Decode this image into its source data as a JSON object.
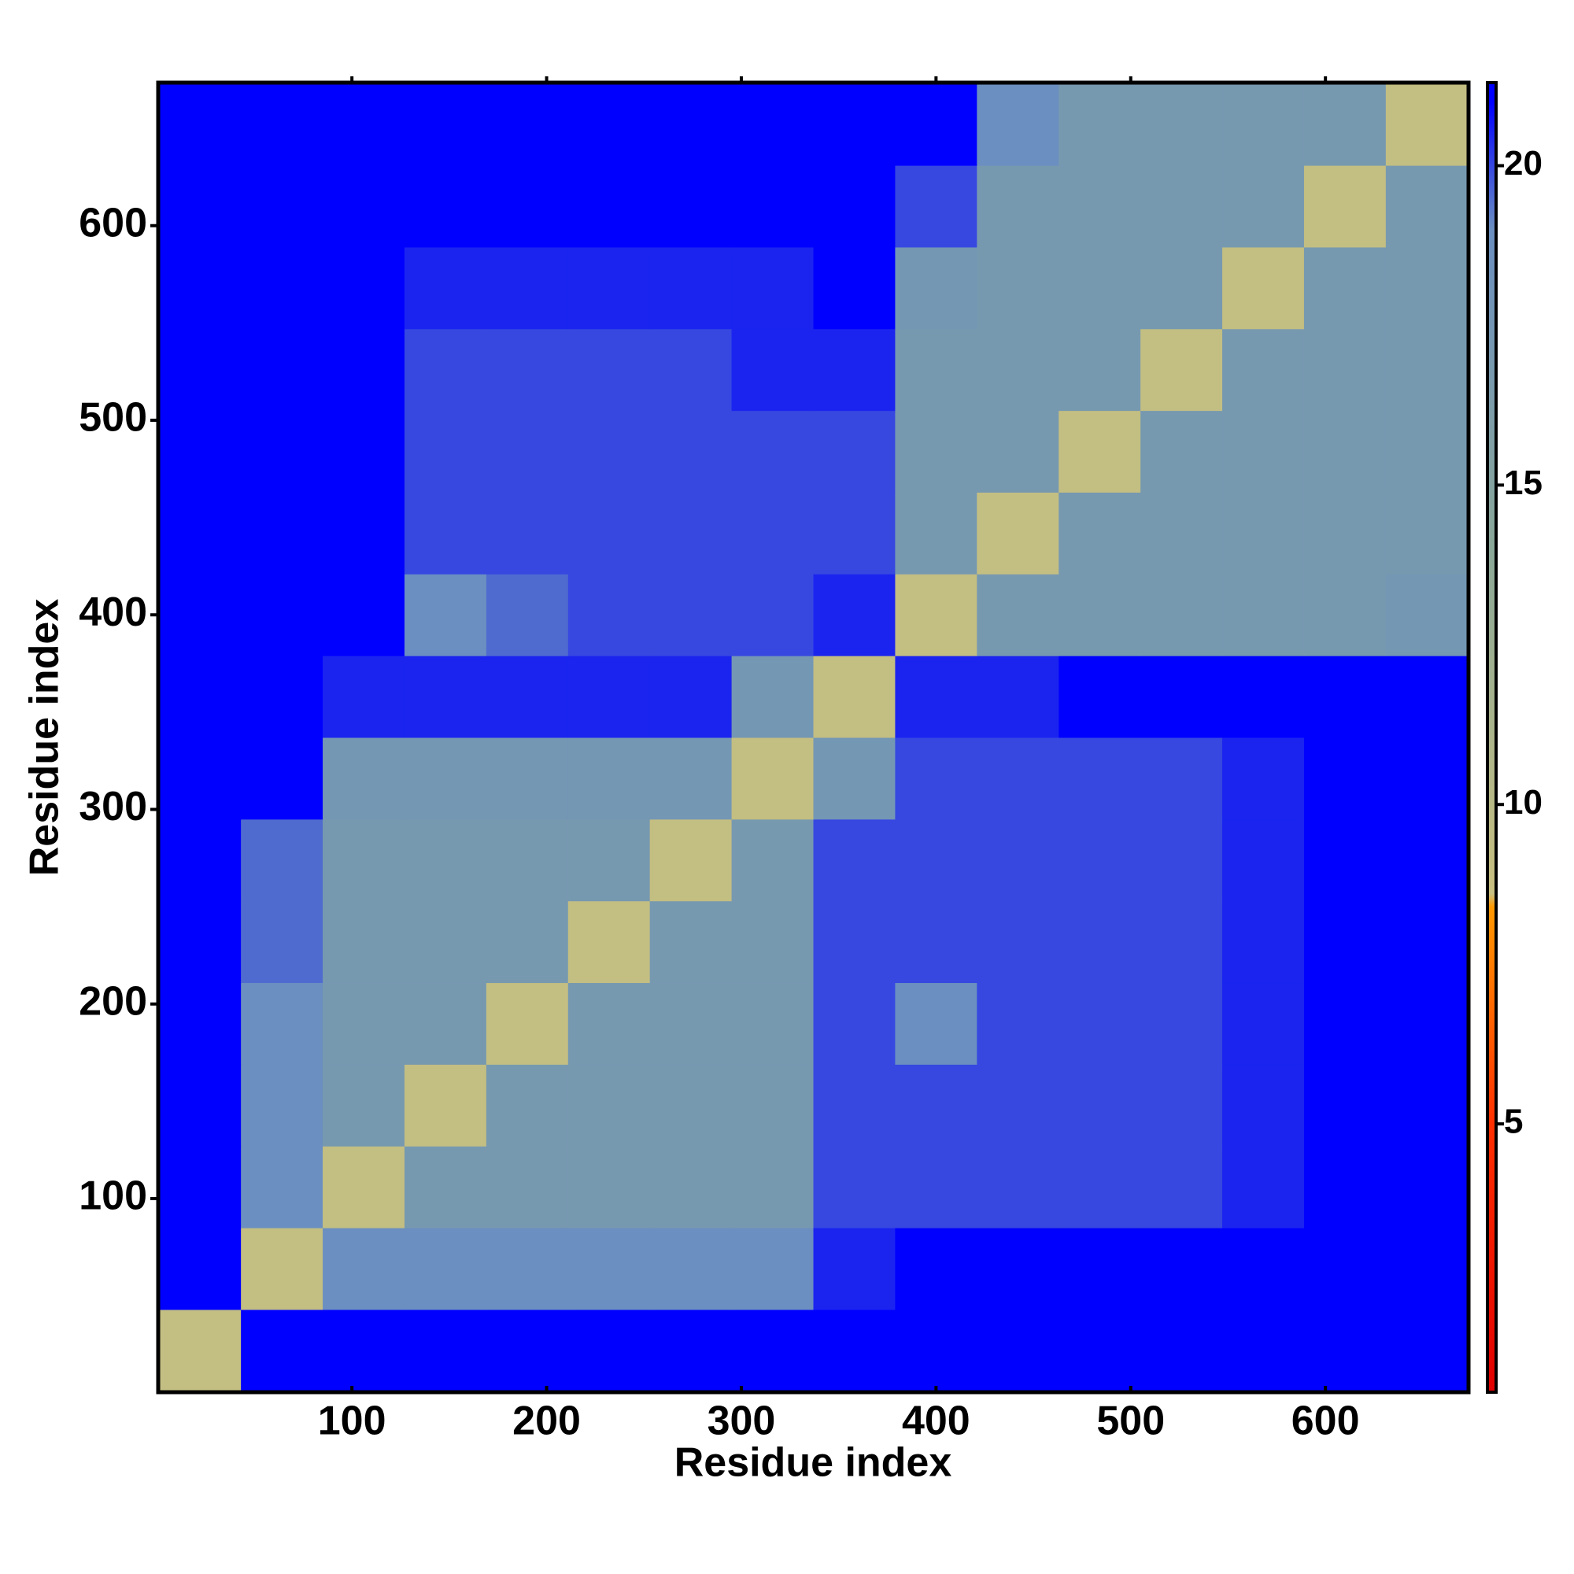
{
  "chart_data": {
    "type": "heatmap",
    "x_label": "Residue index",
    "y_label": "Residue index",
    "xlim": [
      0.5,
      673.5
    ],
    "ylim": [
      0.5,
      673.5
    ],
    "xticks": [
      100,
      200,
      300,
      400,
      500,
      600
    ],
    "yticks": [
      100,
      200,
      300,
      400,
      500,
      600
    ],
    "xbins": [
      1,
      43,
      85,
      127,
      169,
      211,
      253,
      295,
      337,
      379,
      421,
      463,
      505,
      547,
      589,
      631,
      673
    ],
    "ybins": [
      1,
      43,
      85,
      127,
      169,
      211,
      253,
      295,
      337,
      379,
      421,
      463,
      505,
      547,
      589,
      631,
      673
    ],
    "z": [
      [
        9,
        21,
        21,
        21,
        21,
        21,
        21,
        21,
        21,
        21,
        21,
        21,
        21,
        21,
        21,
        21
      ],
      [
        21,
        9,
        19,
        19,
        19,
        19,
        19,
        19,
        20.5,
        21,
        21,
        21,
        21,
        21,
        21,
        21
      ],
      [
        21,
        19,
        9,
        17,
        17,
        17,
        17,
        17,
        20,
        20,
        20,
        20,
        20,
        20.5,
        21,
        21
      ],
      [
        21,
        19,
        17,
        9,
        17,
        17,
        17,
        17,
        20,
        20,
        20,
        20,
        20,
        20.5,
        21,
        21
      ],
      [
        21,
        19,
        17,
        17,
        9,
        17,
        17,
        17,
        20,
        19,
        20,
        20,
        20,
        20.5,
        21,
        21
      ],
      [
        21,
        19.5,
        17,
        17,
        17,
        9,
        17,
        17,
        20,
        20,
        20,
        20,
        20,
        20.5,
        21,
        21
      ],
      [
        21,
        19.5,
        17,
        17,
        17,
        17,
        9,
        17,
        20,
        20,
        20,
        20,
        20,
        20.5,
        21,
        21
      ],
      [
        21,
        21,
        17.5,
        17.5,
        17.5,
        17.5,
        17.5,
        9,
        17.5,
        20,
        20,
        20,
        20,
        20.5,
        21,
        21
      ],
      [
        21,
        21,
        20.5,
        20.5,
        20.5,
        20.5,
        20.5,
        17.5,
        9,
        20.5,
        20.5,
        21,
        21,
        21,
        21,
        21
      ],
      [
        21,
        21,
        21,
        19,
        19.5,
        20,
        20,
        20,
        20.5,
        9,
        17,
        17,
        17,
        17,
        17,
        17.5
      ],
      [
        21,
        21,
        21,
        20,
        20,
        20,
        20,
        20,
        20,
        17,
        9,
        17,
        17,
        17,
        17,
        17
      ],
      [
        21,
        21,
        21,
        20,
        20,
        20,
        20,
        20,
        20,
        17,
        17,
        9,
        17,
        17,
        17,
        17
      ],
      [
        21,
        21,
        21,
        20,
        20,
        20,
        20,
        20.5,
        20.5,
        17,
        17,
        17,
        9,
        17,
        17,
        17
      ],
      [
        21,
        21,
        21,
        20.5,
        20.5,
        20.5,
        20.5,
        20.5,
        21,
        17.5,
        17,
        17,
        17,
        9,
        17,
        17
      ],
      [
        21,
        21,
        21,
        21,
        21,
        21,
        21,
        21,
        21,
        20,
        17,
        17,
        17,
        17,
        9,
        17
      ],
      [
        21,
        21,
        21,
        21,
        21,
        21,
        21,
        21,
        21,
        21,
        19,
        17,
        17,
        17,
        17,
        9
      ]
    ],
    "clim": [
      0.8,
      21.3
    ],
    "cticks": [
      5,
      10,
      15,
      20
    ],
    "colorscale": [
      [
        0.8,
        "#e00000"
      ],
      [
        5,
        "#ff3000"
      ],
      [
        8.4,
        "#ff9900"
      ],
      [
        8.6,
        "#c8c080"
      ],
      [
        14,
        "#8aa898"
      ],
      [
        19,
        "#6b8fc0"
      ],
      [
        21,
        "#0000ff"
      ],
      [
        21.3,
        "#0000ff"
      ]
    ]
  }
}
